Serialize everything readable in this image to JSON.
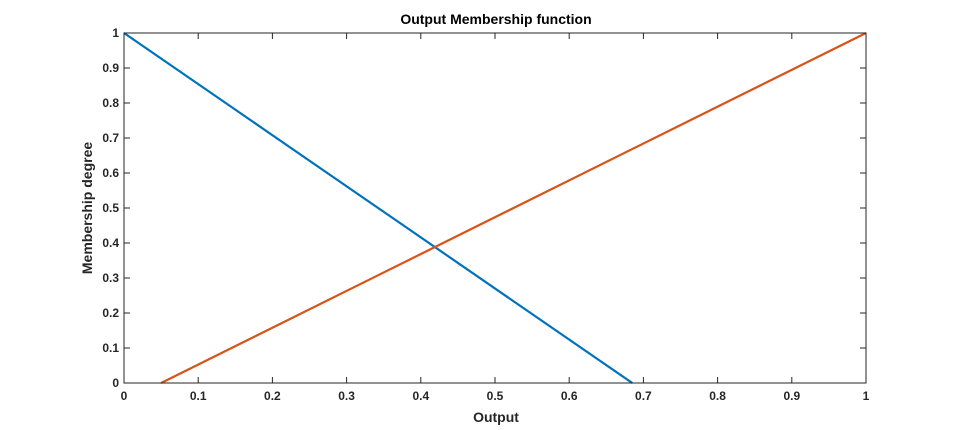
{
  "chart_data": {
    "type": "line",
    "title": "Output Membership function",
    "xlabel": "Output",
    "ylabel": "Membership degree",
    "xlim": [
      0,
      1
    ],
    "ylim": [
      0,
      1
    ],
    "xticks": [
      0,
      0.1,
      0.2,
      0.3,
      0.4,
      0.5,
      0.6,
      0.7,
      0.8,
      0.9,
      1
    ],
    "xtick_labels": [
      "0",
      "0.1",
      "0.2",
      "0.3",
      "0.4",
      "0.5",
      "0.6",
      "0.7",
      "0.8",
      "0.9",
      "1"
    ],
    "yticks": [
      0,
      0.1,
      0.2,
      0.3,
      0.4,
      0.5,
      0.6,
      0.7,
      0.8,
      0.9,
      1
    ],
    "ytick_labels": [
      "0",
      "0.1",
      "0.2",
      "0.3",
      "0.4",
      "0.5",
      "0.6",
      "0.7",
      "0.8",
      "0.9",
      "1"
    ],
    "grid": false,
    "series": [
      {
        "name": "series-1",
        "color": "#0072BD",
        "x": [
          0,
          0.685
        ],
        "y": [
          1,
          0
        ]
      },
      {
        "name": "series-2",
        "color": "#D95319",
        "x": [
          0.05,
          1
        ],
        "y": [
          0,
          1
        ]
      }
    ]
  }
}
